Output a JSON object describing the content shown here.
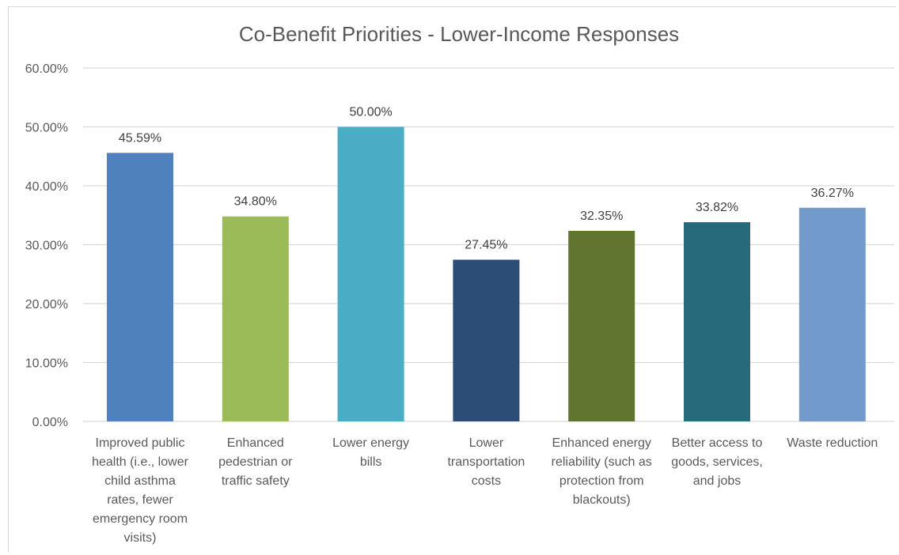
{
  "chart_data": {
    "type": "bar",
    "title": "Co-Benefit Priorities - Lower-Income Responses",
    "categories": [
      "Improved public health (i.e., lower child asthma rates, fewer emergency room visits)",
      "Enhanced pedestrian or traffic safety",
      "Lower energy bills",
      "Lower transportation costs",
      "Enhanced energy reliability (such as protection from blackouts)",
      "Better access to goods, services, and jobs",
      "Waste reduction"
    ],
    "category_lines": [
      [
        "Improved public",
        "health (i.e., lower",
        "child asthma",
        "rates, fewer",
        "emergency room",
        "visits)"
      ],
      [
        "Enhanced",
        "pedestrian or",
        "traffic safety"
      ],
      [
        "Lower energy",
        "bills"
      ],
      [
        "Lower",
        "transportation",
        "costs"
      ],
      [
        "Enhanced energy",
        "reliability (such as",
        "protection from",
        "blackouts)"
      ],
      [
        "Better access to",
        "goods, services,",
        "and jobs"
      ],
      [
        "Waste reduction"
      ]
    ],
    "values": [
      45.59,
      34.8,
      50.0,
      27.45,
      32.35,
      33.82,
      36.27
    ],
    "data_labels": [
      "45.59%",
      "34.80%",
      "50.00%",
      "27.45%",
      "32.35%",
      "33.82%",
      "36.27%"
    ],
    "bar_colors": [
      "#4f81bd",
      "#9bbb59",
      "#4bacc6",
      "#2c4d75",
      "#5f7530",
      "#276a7c",
      "#729aca"
    ],
    "ylim": [
      0,
      60
    ],
    "yticks": [
      0,
      10,
      20,
      30,
      40,
      50,
      60
    ],
    "ytick_labels": [
      "0.00%",
      "10.00%",
      "20.00%",
      "30.00%",
      "40.00%",
      "50.00%",
      "60.00%"
    ],
    "grid": true,
    "gridline_color": "#d9d9d9",
    "xlabel": "",
    "ylabel": ""
  }
}
